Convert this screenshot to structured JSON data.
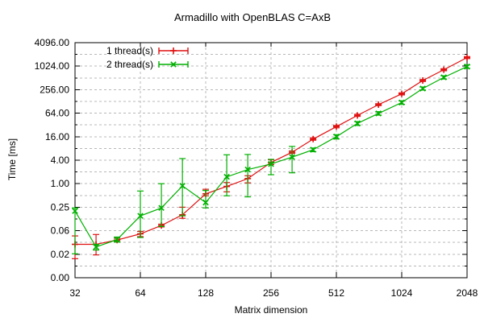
{
  "chart_data": {
    "type": "line",
    "subtype": "errorbars",
    "title": "Armadillo with OpenBLAS C=AxB",
    "xlabel": "Matrix dimension",
    "ylabel": "Time [ms]",
    "x_scale": "log2",
    "y_scale": "log2",
    "x_range": [
      32,
      2048
    ],
    "y_range": [
      0.00390625,
      4096
    ],
    "grid": true,
    "legend_position": "top-left",
    "x_ticks": [
      {
        "value": 32,
        "label": "32"
      },
      {
        "value": 64,
        "label": "64"
      },
      {
        "value": 128,
        "label": "128"
      },
      {
        "value": 256,
        "label": "256"
      },
      {
        "value": 512,
        "label": "512"
      },
      {
        "value": 1024,
        "label": "1024"
      },
      {
        "value": 2048,
        "label": "2048"
      }
    ],
    "y_ticks": [
      {
        "value": 4096,
        "label": "4096.00"
      },
      {
        "value": 1024,
        "label": "1024.00"
      },
      {
        "value": 256,
        "label": "256.00"
      },
      {
        "value": 64,
        "label": "64.00"
      },
      {
        "value": 16,
        "label": "16.00"
      },
      {
        "value": 4,
        "label": "4.00"
      },
      {
        "value": 1,
        "label": "1.00"
      },
      {
        "value": 0.25,
        "label": "0.25"
      },
      {
        "value": 0.0625,
        "label": "0.06"
      },
      {
        "value": 0.015625,
        "label": "0.02"
      },
      {
        "value": 0.00390625,
        "label": "0.00"
      }
    ],
    "x": [
      32,
      40,
      50,
      64,
      80,
      100,
      128,
      160,
      200,
      256,
      320,
      400,
      512,
      640,
      800,
      1024,
      1280,
      1600,
      2048
    ],
    "series": [
      {
        "name": "1 thread(s)",
        "color": "#e01010",
        "marker": "plus",
        "y": [
          0.028,
          0.028,
          0.036,
          0.052,
          0.085,
          0.16,
          0.55,
          0.85,
          1.35,
          3.5,
          6.4,
          13.9,
          29,
          56,
          106,
          200,
          440,
          830,
          1700
        ],
        "y_low": [
          0.012,
          0.015,
          0.033,
          0.044,
          0.078,
          0.13,
          0.49,
          0.62,
          1.05,
          3.1,
          6.0,
          13.0,
          27,
          53,
          100,
          188,
          415,
          780,
          1600
        ],
        "y_high": [
          0.046,
          0.05,
          0.04,
          0.06,
          0.092,
          0.25,
          0.72,
          1.07,
          1.6,
          4.1,
          6.9,
          15.0,
          31,
          60,
          112,
          212,
          465,
          880,
          1800
        ]
      },
      {
        "name": "2 thread(s)",
        "color": "#00b000",
        "marker": "cross",
        "y": [
          0.2,
          0.024,
          0.037,
          0.15,
          0.24,
          0.88,
          0.33,
          1.5,
          2.3,
          3.2,
          4.8,
          7.4,
          16,
          35,
          63,
          120,
          274,
          530,
          1000
        ],
        "y_low": [
          0.016,
          0.02,
          0.032,
          0.042,
          0.08,
          0.15,
          0.24,
          0.49,
          0.46,
          1.7,
          1.9,
          6.6,
          14,
          31,
          57,
          108,
          250,
          480,
          900
        ],
        "y_high": [
          0.24,
          0.028,
          0.043,
          0.65,
          1.0,
          4.4,
          0.67,
          5.5,
          5.6,
          4.2,
          9.0,
          8.2,
          18,
          39,
          70,
          133,
          300,
          580,
          1100
        ]
      }
    ]
  }
}
